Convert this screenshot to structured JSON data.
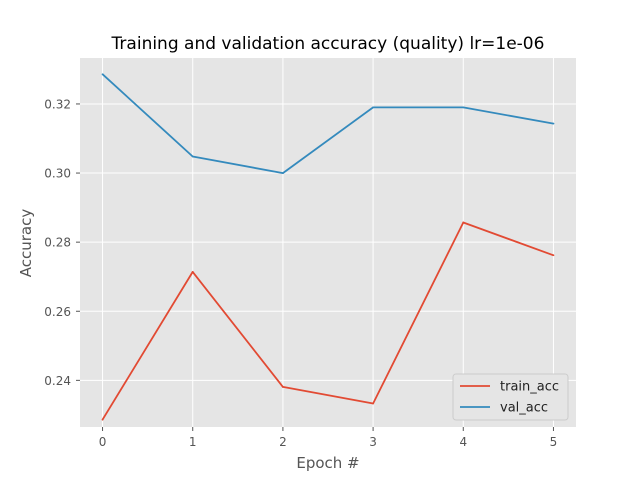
{
  "chart_data": {
    "type": "line",
    "title": "Training and validation accuracy (quality) lr=1e-06",
    "xlabel": "Epoch #",
    "ylabel": "Accuracy",
    "x": [
      0,
      1,
      2,
      3,
      4,
      5
    ],
    "xlim": [
      -0.25,
      5.25
    ],
    "ylim": [
      0.2265,
      0.3333
    ],
    "yticks": [
      0.24,
      0.26,
      0.28,
      0.3,
      0.32
    ],
    "ytick_labels": [
      "0.24",
      "0.26",
      "0.28",
      "0.30",
      "0.32"
    ],
    "xtick_labels": [
      "0",
      "1",
      "2",
      "3",
      "4",
      "5"
    ],
    "grid": true,
    "legend_position": "lower-right",
    "background_color": "#e5e5e5",
    "series": [
      {
        "name": "train_acc",
        "color": "#e24a33",
        "values": [
          0.2286,
          0.2714,
          0.2381,
          0.2333,
          0.2857,
          0.2762
        ]
      },
      {
        "name": "val_acc",
        "color": "#348abd",
        "values": [
          0.3286,
          0.3048,
          0.3,
          0.319,
          0.319,
          0.3143
        ]
      }
    ]
  }
}
